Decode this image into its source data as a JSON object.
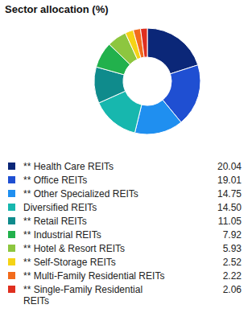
{
  "chart_data": {
    "type": "donut",
    "title": "Sector allocation (%)",
    "categories": [
      "** Health Care REITs",
      "** Office REITs",
      "** Other Specialized REITs",
      "Diversified REITs",
      "** Retail REITs",
      "** Industrial REITs",
      "** Hotel & Resort REITs",
      "** Self-Storage REITs",
      "** Multi-Family Residential REITs",
      "** Single-Family Residential REITs"
    ],
    "values": [
      20.04,
      19.01,
      14.75,
      14.5,
      11.05,
      7.92,
      5.93,
      2.52,
      2.22,
      2.06
    ],
    "value_labels": [
      "20.04",
      "19.01",
      "14.75",
      "14.50",
      "11.05",
      "7.92",
      "5.93",
      "2.52",
      "2.22",
      "2.06"
    ],
    "colors": [
      "#0b2778",
      "#1f4fd2",
      "#1f8ff0",
      "#17b7ae",
      "#0f8b8c",
      "#22b14c",
      "#8dc63f",
      "#f5d316",
      "#f26b1c",
      "#df2f1f"
    ],
    "legend": "bottom"
  }
}
